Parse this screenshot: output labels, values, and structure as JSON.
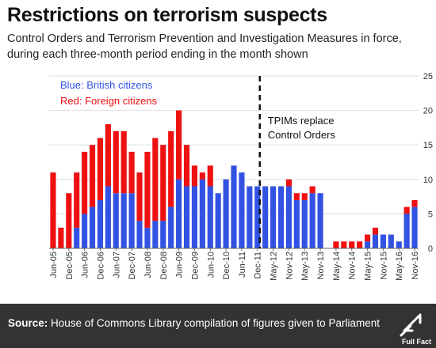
{
  "header": {
    "title": "Restrictions on terrorism suspects",
    "subtitle": "Control Orders and Terrorism Prevention and Investigation Measures in force, during each three-month period ending in the month shown"
  },
  "footer": {
    "source_label": "Source:",
    "source_text": "House of Commons Library compilation of figures given to Parliament",
    "logo_text": "Full Fact"
  },
  "colors": {
    "british": "#3352e3",
    "foreign": "#ee1111",
    "footer_bg": "#333333",
    "grid": "#dddddd"
  },
  "chart_data": {
    "type": "bar",
    "stacked": true,
    "ylim": [
      0,
      25
    ],
    "yticks": [
      0,
      5,
      10,
      15,
      20,
      25
    ],
    "grid": true,
    "legend_position": "top-left",
    "categories": [
      "Jun-05",
      "Sep-05",
      "Dec-05",
      "Mar-06",
      "Jun-06",
      "Sep-06",
      "Dec-06",
      "Mar-07",
      "Jun-07",
      "Sep-07",
      "Dec-07",
      "Mar-08",
      "Jun-08",
      "Sep-08",
      "Dec-08",
      "Mar-09",
      "Jun-09",
      "Sep-09",
      "Dec-09",
      "Mar-10",
      "Jun-10",
      "Sep-10",
      "Dec-10",
      "Mar-11",
      "Jun-11",
      "Sep-11",
      "Dec-11",
      "Feb-12",
      "May-12",
      "Aug-12",
      "Nov-12",
      "Feb-13",
      "May-13",
      "Aug-13",
      "Nov-13",
      "Feb-14",
      "May-14",
      "Aug-14",
      "Nov-14",
      "Feb-15",
      "May-15",
      "Aug-15",
      "Nov-15",
      "Feb-16",
      "May-16",
      "Aug-16",
      "Nov-16"
    ],
    "tick_labels": [
      "Jun-05",
      "Dec-05",
      "Jun-06",
      "Dec-06",
      "Jun-07",
      "Dec-07",
      "Jun-08",
      "Dec-08",
      "Jun-09",
      "Dec-09",
      "Jun-10",
      "Dec-10",
      "Jun-11",
      "Dec-11",
      "May-12",
      "Nov-12",
      "May-13",
      "Nov-13",
      "May-14",
      "Nov-14",
      "May-15",
      "Nov-15",
      "May-16",
      "Nov-16"
    ],
    "series": [
      {
        "name": "Blue: British citizens",
        "values": [
          0,
          0,
          0,
          3,
          5,
          6,
          7,
          9,
          8,
          8,
          8,
          4,
          3,
          4,
          4,
          6,
          10,
          9,
          9,
          10,
          9,
          8,
          10,
          12,
          11,
          9,
          9,
          9,
          9,
          9,
          9,
          7,
          7,
          8,
          8,
          0,
          0,
          0,
          0,
          0,
          1,
          2,
          2,
          2,
          1,
          5,
          6
        ]
      },
      {
        "name": "Red: Foreign citizens",
        "values": [
          11,
          3,
          8,
          8,
          9,
          9,
          9,
          9,
          9,
          9,
          6,
          7,
          11,
          12,
          11,
          11,
          10,
          6,
          3,
          1,
          3,
          0,
          0,
          0,
          0,
          0,
          0,
          0,
          0,
          0,
          1,
          1,
          1,
          1,
          0,
          0,
          1,
          1,
          1,
          1,
          1,
          1,
          0,
          0,
          0,
          1,
          1
        ]
      }
    ],
    "annotation": {
      "text": "TPIMs replace Control Orders",
      "line1": "TPIMs replace",
      "line2": "Control Orders",
      "at_category": "Dec-11"
    }
  }
}
